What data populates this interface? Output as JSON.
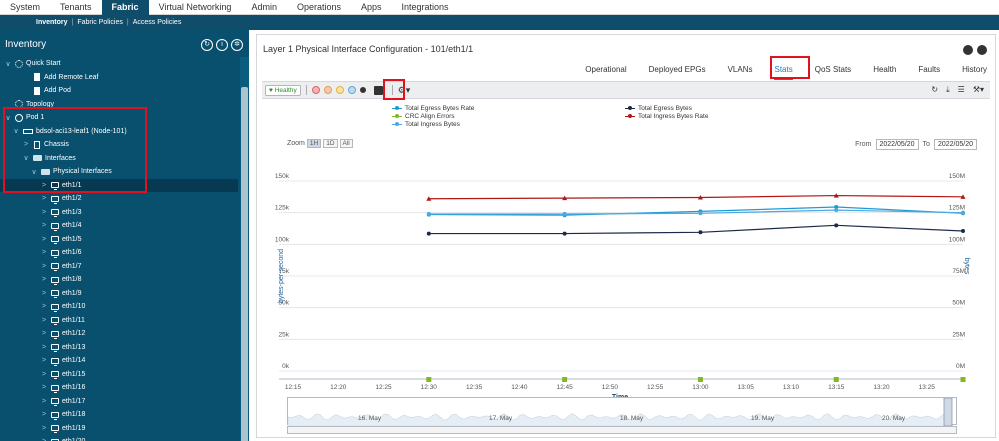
{
  "topnav": {
    "items": [
      "System",
      "Tenants",
      "Fabric",
      "Virtual Networking",
      "Admin",
      "Operations",
      "Apps",
      "Integrations"
    ],
    "active": "Fabric"
  },
  "subnav": {
    "items": [
      "Inventory",
      "Fabric Policies",
      "Access Policies"
    ],
    "separator": "|"
  },
  "sidebar": {
    "title": "Inventory",
    "tree": [
      {
        "label": "Quick Start",
        "icon": "quick-start-icon"
      },
      {
        "label": "Add Remote Leaf",
        "icon": "document-icon"
      },
      {
        "label": "Add Pod",
        "icon": "document-icon"
      },
      {
        "label": "Topology",
        "icon": "topology-icon"
      },
      {
        "label": "Pod 1",
        "icon": "globe-icon"
      },
      {
        "label": "bdsol-aci13-leaf1 (Node-101)",
        "icon": "switch-icon"
      },
      {
        "label": "Chassis",
        "icon": "chassis-icon"
      },
      {
        "label": "Interfaces",
        "icon": "folder-icon"
      },
      {
        "label": "Physical Interfaces",
        "icon": "folder-icon"
      },
      {
        "label": "eth1/1",
        "icon": "interface-icon"
      },
      {
        "label": "eth1/2",
        "icon": "interface-icon"
      },
      {
        "label": "eth1/3",
        "icon": "interface-icon"
      },
      {
        "label": "eth1/4",
        "icon": "interface-icon"
      },
      {
        "label": "eth1/5",
        "icon": "interface-icon"
      },
      {
        "label": "eth1/6",
        "icon": "interface-icon"
      },
      {
        "label": "eth1/7",
        "icon": "interface-icon"
      },
      {
        "label": "eth1/8",
        "icon": "interface-icon"
      },
      {
        "label": "eth1/9",
        "icon": "interface-icon"
      },
      {
        "label": "eth1/10",
        "icon": "interface-icon"
      },
      {
        "label": "eth1/11",
        "icon": "interface-icon"
      },
      {
        "label": "eth1/12",
        "icon": "interface-icon"
      },
      {
        "label": "eth1/13",
        "icon": "interface-icon"
      },
      {
        "label": "eth1/14",
        "icon": "interface-icon"
      },
      {
        "label": "eth1/15",
        "icon": "interface-icon"
      },
      {
        "label": "eth1/16",
        "icon": "interface-icon"
      },
      {
        "label": "eth1/17",
        "icon": "interface-icon"
      },
      {
        "label": "eth1/18",
        "icon": "interface-icon"
      },
      {
        "label": "eth1/19",
        "icon": "interface-icon"
      },
      {
        "label": "eth1/20",
        "icon": "interface-icon"
      }
    ]
  },
  "main": {
    "title": "Layer 1 Physical Interface Configuration - 101/eth1/1",
    "tabs": [
      "Operational",
      "Deployed EPGs",
      "VLANs",
      "Stats",
      "QoS Stats",
      "Health",
      "Faults",
      "History"
    ],
    "active_tab": "Stats",
    "healthy_label": "Healthy",
    "zoom_label": "Zoom",
    "zoom_options": [
      "1H",
      "1D",
      "All"
    ],
    "from_label": "From",
    "from_value": "2022/05/20",
    "to_label": "To",
    "to_value": "2022/05/20",
    "navigator_dates": [
      "16. May",
      "17. May",
      "18. May",
      "19. May",
      "20. May"
    ]
  },
  "chart_data": {
    "type": "line",
    "xlabel": "Time",
    "ylabel": "bytes-per-second",
    "ylabel_right": "bytes",
    "x_ticks": [
      "12:15",
      "12:20",
      "12:25",
      "12:30",
      "12:35",
      "12:40",
      "12:45",
      "12:50",
      "12:55",
      "13:00",
      "13:05",
      "13:10",
      "13:15",
      "13:20",
      "13:25"
    ],
    "x_points": [
      "12:30",
      "12:45",
      "13:00",
      "13:15",
      "13:29"
    ],
    "y_ticks_left": [
      "0k",
      "25k",
      "50k",
      "75k",
      "100k",
      "125k",
      "150k"
    ],
    "y_ticks_right": [
      "0M",
      "25M",
      "50M",
      "75M",
      "100M",
      "125M",
      "150M"
    ],
    "ylim_left": [
      0,
      150000
    ],
    "ylim_right": [
      0,
      150000000
    ],
    "series": [
      {
        "name": "Total Egress Bytes Rate",
        "color": "#1e9bd7",
        "axis": "left",
        "values": [
          123500,
          123000,
          126000,
          129500,
          124500
        ]
      },
      {
        "name": "CRC Align Errors",
        "color": "#7dbb21",
        "axis": "left",
        "values": [
          0,
          0,
          0,
          0,
          0
        ]
      },
      {
        "name": "Total Ingress Bytes",
        "color": "#4baae0",
        "axis": "right",
        "values": [
          124000000,
          124000000,
          124500000,
          127000000,
          125000000
        ]
      },
      {
        "name": "Total Egress Bytes",
        "color": "#1c2a4a",
        "axis": "right",
        "values": [
          108500000,
          108500000,
          109500000,
          115000000,
          110500000
        ]
      },
      {
        "name": "Total Ingress Bytes Rate",
        "color": "#b11717",
        "axis": "left",
        "values": [
          136000,
          136500,
          137000,
          138500,
          137500
        ]
      }
    ]
  }
}
